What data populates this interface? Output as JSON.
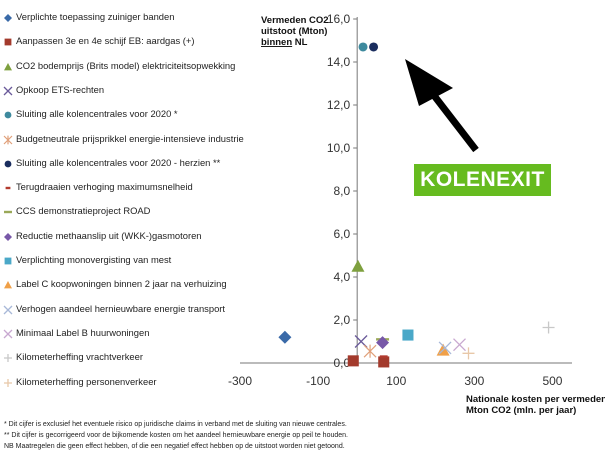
{
  "chart_data": {
    "type": "scatter",
    "ylabel_lines": [
      "Vermeden CO2",
      "uitstoot (Mton)",
      "binnen NL"
    ],
    "ylabel_underline_index": 2,
    "ylabel_underline_word": "binnen",
    "xlabel_lines": [
      "Nationale kosten per vermeden",
      "Mton CO2 (mln. per jaar)"
    ],
    "xlim": [
      -300,
      550
    ],
    "ylim": [
      0,
      16
    ],
    "x_ticks": [
      -300,
      -100,
      100,
      300,
      500
    ],
    "x_tick_labels": [
      "-300",
      "-100",
      "100",
      "300",
      "500"
    ],
    "y_ticks": [
      2,
      4,
      6,
      8,
      10,
      12,
      14,
      16
    ],
    "y_tick_labels": [
      "2,0",
      "4,0",
      "6,0",
      "8,0",
      "10,0",
      "12,0",
      "14,0",
      "16,0"
    ],
    "zero_label": "0,0",
    "grid": false,
    "legend_position": "left",
    "series": [
      {
        "name": "Verplichte toepassing zuiniger banden",
        "marker": "diamond",
        "color": "#3a6aa8",
        "points": [
          [
            -185,
            1.2
          ]
        ]
      },
      {
        "name": "Aanpassen 3e en 4e schijf EB: aardgas (+)",
        "marker": "square",
        "color": "#a33a2c",
        "points": [
          [
            -10,
            0.1
          ],
          [
            68,
            0.05
          ]
        ]
      },
      {
        "name": "CO2 bodemprijs (Brits model) elektriciteitsopwekking",
        "marker": "triangle",
        "color": "#7ea03e",
        "points": [
          [
            2,
            4.5
          ]
        ]
      },
      {
        "name": "Opkoop ETS-rechten",
        "marker": "x",
        "color": "#6a5a9a",
        "points": [
          [
            10,
            1.0
          ]
        ]
      },
      {
        "name": "Sluiting alle kolencentrales voor 2020 *",
        "marker": "circle",
        "color": "#3e8a9e",
        "points": [
          [
            15,
            14.7
          ]
        ]
      },
      {
        "name": "Budgetneutrale prijsprikkel energie-intensieve industrie",
        "marker": "asterisk",
        "color": "#e0a07a",
        "points": [
          [
            33,
            0.55
          ]
        ]
      },
      {
        "name": "Sluiting alle kolencentrales voor 2020 - herzien **",
        "marker": "circle",
        "color": "#1a2d5e",
        "points": [
          [
            42,
            14.7
          ]
        ]
      },
      {
        "name": "Terugdraaien verhoging maximumsnelheid",
        "marker": "dash",
        "color": "#b23a2e",
        "points": [
          [
            68,
            0.3
          ]
        ]
      },
      {
        "name": "CCS demonstratieproject ROAD",
        "marker": "hline",
        "color": "#9aa858",
        "points": [
          [
            65,
            1.1
          ]
        ]
      },
      {
        "name": "Reductie methaanslip uit (WKK-)gasmotoren",
        "marker": "diamond",
        "color": "#7858a8",
        "points": [
          [
            65,
            0.95
          ]
        ]
      },
      {
        "name": "Verplichting monovergisting van mest",
        "marker": "square",
        "color": "#4aa8c8",
        "points": [
          [
            130,
            1.3
          ]
        ]
      },
      {
        "name": "Label C koopwoningen binnen 2 jaar na verhuizing",
        "marker": "triangle",
        "color": "#f0a048",
        "points": [
          [
            220,
            0.6
          ]
        ]
      },
      {
        "name": "Verhogen aandeel hernieuwbare energie transport",
        "marker": "x",
        "color": "#a8b8d8",
        "points": [
          [
            225,
            0.7
          ]
        ]
      },
      {
        "name": "Minimaal Label B huurwoningen",
        "marker": "x",
        "color": "#c8a8d0",
        "points": [
          [
            262,
            0.85
          ]
        ]
      },
      {
        "name": "Kilometerheffing vrachtverkeer",
        "marker": "plus",
        "color": "#c8c8c8",
        "points": [
          [
            490,
            1.65
          ]
        ]
      },
      {
        "name": "Kilometerheffing personenverkeer",
        "marker": "plus",
        "color": "#e8c8a8",
        "points": [
          [
            285,
            0.45
          ]
        ]
      }
    ]
  },
  "annotation": {
    "label": "KOLENEXIT",
    "arrow_color": "#000000",
    "badge_color": "#66bb1f"
  },
  "footnotes": [
    "* Dit cijfer is exclusief het eventuele risico op juridische claims in verband met de sluiting van nieuwe centrales.",
    "** Dit cijfer is gecorrigeerd voor de bijkomende kosten om het aandeel hernieuwbare energie op peil te houden.",
    "NB Maatregelen die geen effect hebben, of die een negatief effect hebben op de uitstoot worden niet getoond."
  ]
}
